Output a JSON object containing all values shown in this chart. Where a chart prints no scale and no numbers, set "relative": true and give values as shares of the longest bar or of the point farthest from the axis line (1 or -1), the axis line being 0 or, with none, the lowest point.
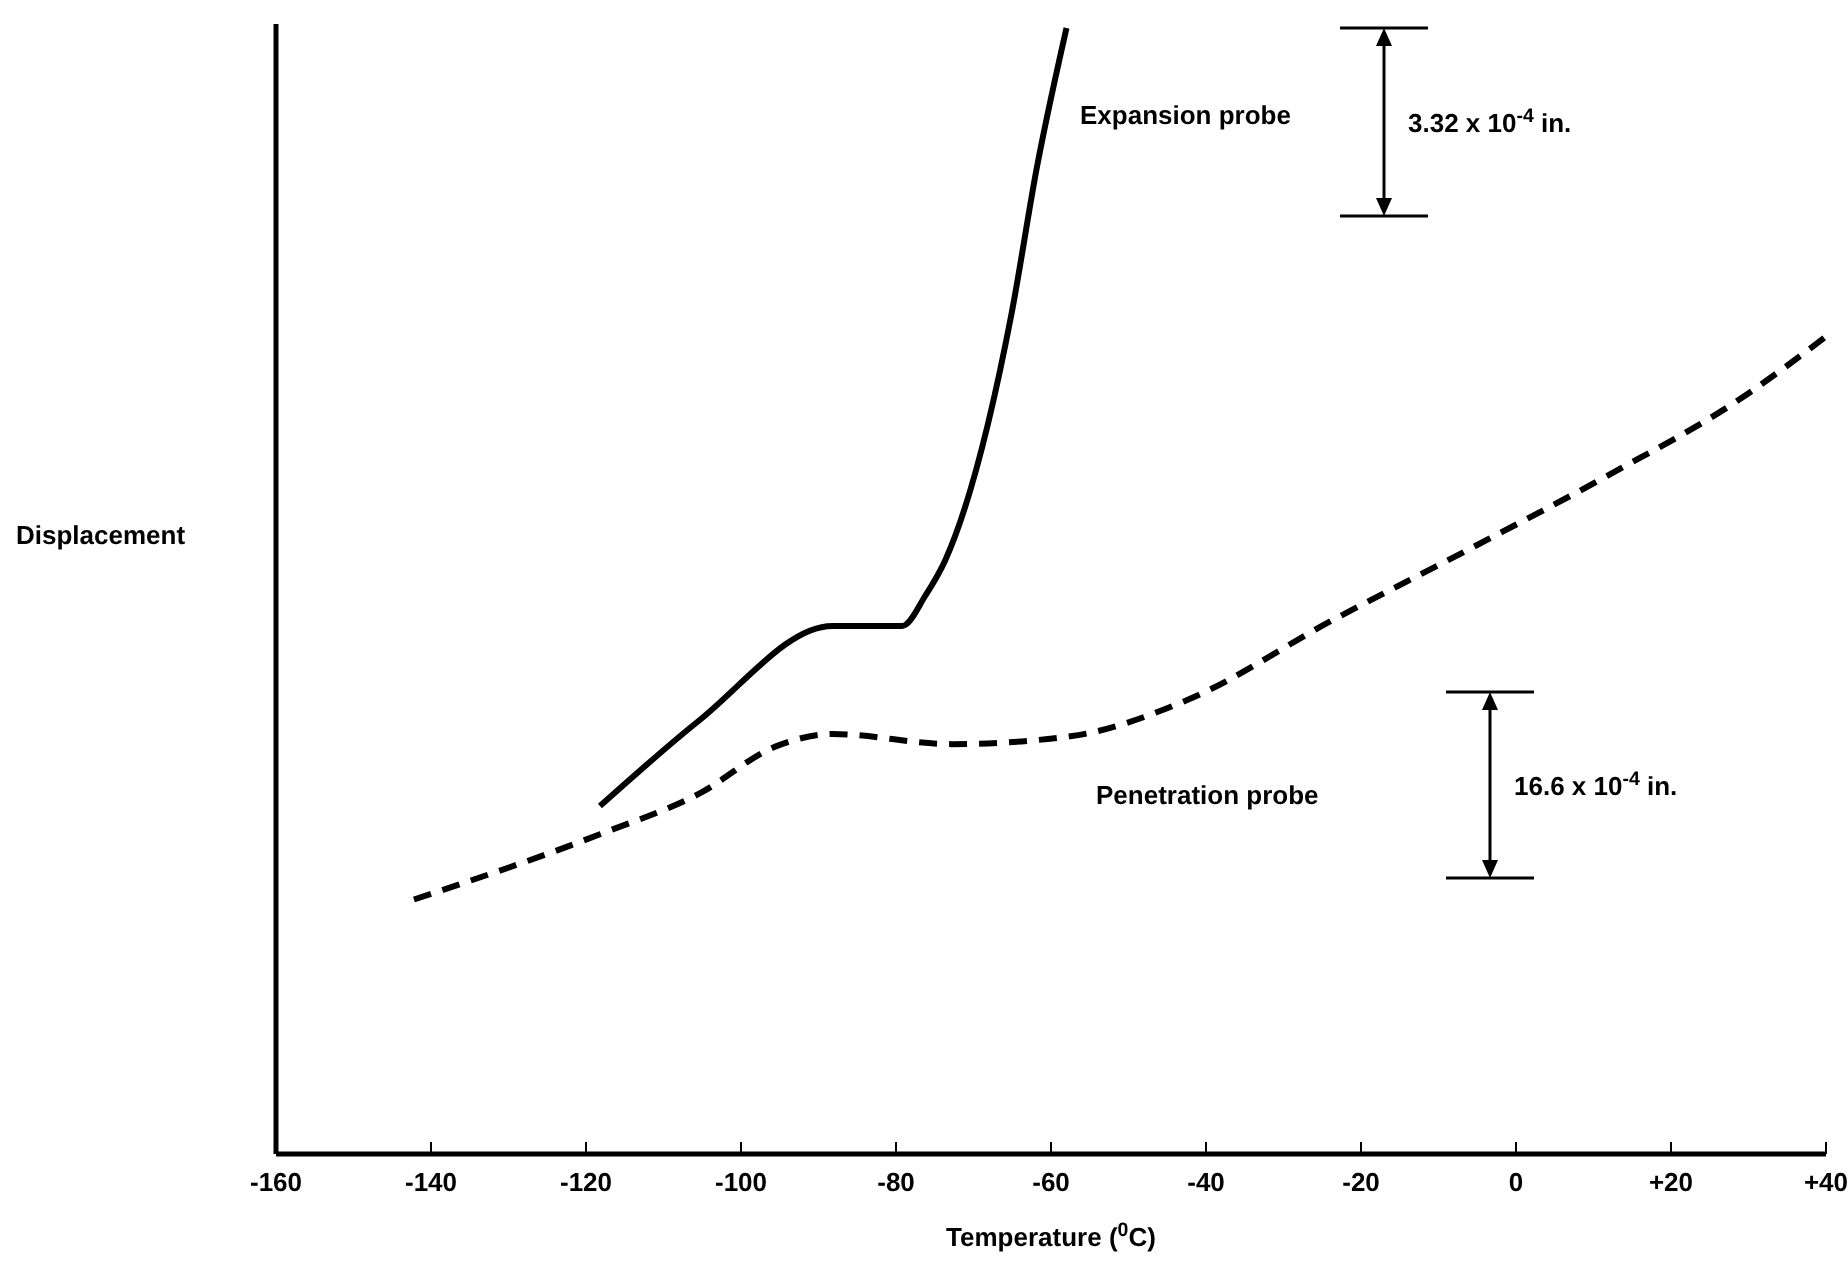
{
  "chart_data": {
    "type": "line",
    "relative": true,
    "xlabel": "Temperature ($^{0}$C)",
    "ylabel": "Displacement",
    "xlim": [
      -160,
      40
    ],
    "xticks": [
      -160,
      -140,
      -120,
      -100,
      -80,
      -60,
      -40,
      -20,
      0,
      {
        "value": 20,
        "label": "+20"
      },
      {
        "value": 40,
        "label": "+40"
      }
    ],
    "tick_labels": "x",
    "marker": "none",
    "series": [
      {
        "name": "Expansion probe",
        "color": "#000000",
        "line_style": "solid",
        "x": [
          -118.2,
          -105.4,
          -88.2,
          -79.2,
          -76.2,
          -73.6,
          -65.1,
          -61.8,
          -58
        ],
        "values": [
          0.309,
          0.385,
          0.469,
          0.469,
          0.496,
          0.528,
          0.746,
          0.877,
          1.0
        ]
      },
      {
        "name": "Penetration probe",
        "color": "#000000",
        "line_style": "dashed",
        "x": [
          -142.2,
          -118.2,
          -105.4,
          -95.5,
          -88.2,
          -72.8,
          -57.5,
          -42.5,
          -23.7,
          -5.8,
          11.7,
          28.8,
          40
        ],
        "values": [
          0.226,
          0.284,
          0.32,
          0.362,
          0.373,
          0.364,
          0.371,
          0.403,
          0.474,
          0.538,
          0.602,
          0.67,
          0.726
        ]
      }
    ],
    "annotations": [
      "3.32 x 10$^{-4}$ in.",
      "16.6 x 10$^{-4}$ in."
    ]
  }
}
